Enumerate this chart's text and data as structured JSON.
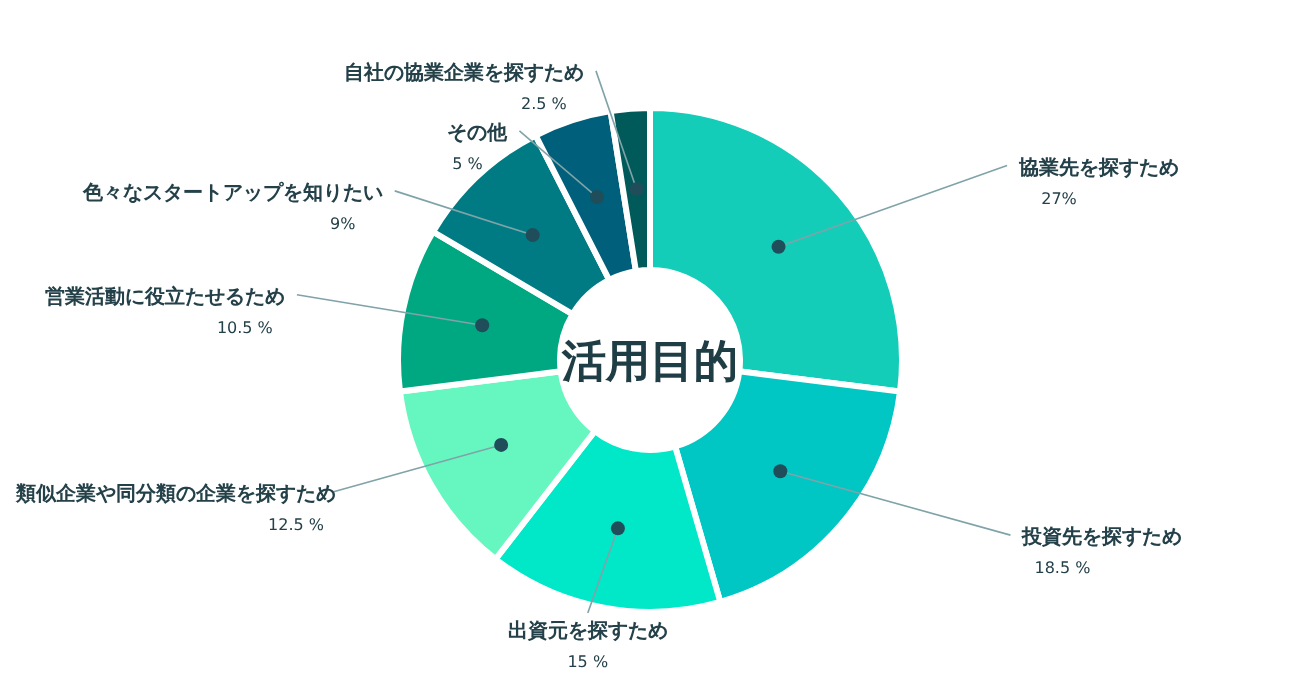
{
  "chart_data": {
    "type": "donut",
    "title": "活用目的",
    "categories": [
      "協業先を探すため",
      "投資先を探すため",
      "出資元を探すため",
      "類似企業や同分類の企業を探すため",
      "営業活動に役立たせるため",
      "色々なスタートアップを知りたい",
      "その他",
      "自社の協業企業を探すため"
    ],
    "values": [
      27,
      18.5,
      15,
      12.5,
      10.5,
      9,
      5,
      2.5
    ],
    "value_labels": [
      "27%",
      "18.5 %",
      "15 %",
      "12.5 %",
      "10.5 %",
      "9%",
      "5 %",
      "2.5 %"
    ],
    "colors": [
      "#14cdb8",
      "#00c6c4",
      "#00e8c8",
      "#66f7c0",
      "#00a882",
      "#007b83",
      "#005f7a",
      "#005a5a"
    ]
  }
}
